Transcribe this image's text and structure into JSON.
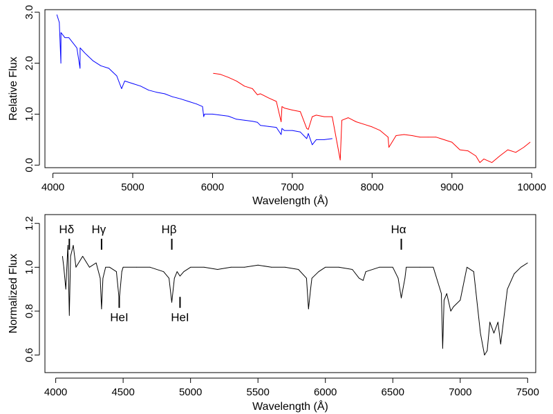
{
  "chart_data": [
    {
      "type": "line",
      "xlabel": "Wavelength (Å)",
      "ylabel": "Relative Flux",
      "xlim": [
        3900,
        10050
      ],
      "ylim": [
        -0.05,
        3.05
      ],
      "xticks": [
        4000,
        5000,
        6000,
        7000,
        8000,
        9000,
        10000
      ],
      "yticks": [
        0.0,
        1.0,
        2.0,
        3.0
      ],
      "ytick_labels": [
        "0.0",
        "1.0",
        "2.0",
        "3.0"
      ],
      "grid": false,
      "series": [
        {
          "color": "#0000ff",
          "x": [
            4050,
            4080,
            4100,
            4101,
            4150,
            4200,
            4300,
            4340,
            4341,
            4400,
            4500,
            4600,
            4700,
            4800,
            4861,
            4900,
            5000,
            5100,
            5200,
            5300,
            5400,
            5500,
            5600,
            5700,
            5800,
            5875,
            5890,
            5900,
            6000,
            6100,
            6200,
            6300,
            6400,
            6500,
            6563,
            6600,
            6700,
            6800,
            6860,
            6870,
            6900,
            7000,
            7100,
            7180,
            7200,
            7250,
            7300,
            7400,
            7500
          ],
          "y": [
            2.95,
            2.8,
            2.0,
            2.6,
            2.5,
            2.5,
            2.3,
            1.9,
            2.3,
            2.2,
            2.05,
            1.95,
            1.9,
            1.75,
            1.5,
            1.65,
            1.6,
            1.55,
            1.47,
            1.43,
            1.4,
            1.34,
            1.3,
            1.25,
            1.2,
            1.15,
            0.95,
            1.0,
            1.0,
            0.98,
            0.96,
            0.9,
            0.88,
            0.86,
            0.84,
            0.78,
            0.76,
            0.74,
            0.6,
            0.72,
            0.68,
            0.68,
            0.65,
            0.52,
            0.62,
            0.4,
            0.5,
            0.5,
            0.52
          ]
        },
        {
          "color": "#ff0000",
          "x": [
            6010,
            6100,
            6200,
            6300,
            6400,
            6500,
            6563,
            6600,
            6700,
            6800,
            6860,
            6870,
            6900,
            7000,
            7100,
            7180,
            7200,
            7250,
            7300,
            7400,
            7500,
            7600,
            7620,
            7700,
            7800,
            7900,
            8000,
            8100,
            8200,
            8210,
            8300,
            8400,
            8500,
            8600,
            8700,
            8800,
            8900,
            9000,
            9100,
            9200,
            9300,
            9350,
            9400,
            9500,
            9600,
            9700,
            9800,
            9900,
            9980
          ],
          "y": [
            1.8,
            1.78,
            1.72,
            1.65,
            1.55,
            1.5,
            1.38,
            1.4,
            1.32,
            1.25,
            0.85,
            1.15,
            1.12,
            1.08,
            1.05,
            0.72,
            0.7,
            0.95,
            0.98,
            0.95,
            0.95,
            0.1,
            0.88,
            0.93,
            0.85,
            0.8,
            0.75,
            0.68,
            0.55,
            0.35,
            0.58,
            0.6,
            0.58,
            0.55,
            0.55,
            0.55,
            0.5,
            0.45,
            0.3,
            0.28,
            0.18,
            0.05,
            0.12,
            0.05,
            0.18,
            0.3,
            0.25,
            0.35,
            0.45
          ]
        }
      ]
    },
    {
      "type": "line",
      "xlabel": "Wavelength (Å)",
      "ylabel": "Normalized Flux",
      "xlim": [
        3920,
        7560
      ],
      "ylim": [
        0.52,
        1.24
      ],
      "xticks": [
        4000,
        4500,
        5000,
        5500,
        6000,
        6500,
        7000,
        7500
      ],
      "yticks": [
        0.6,
        0.8,
        1.0,
        1.2
      ],
      "ytick_labels": [
        "0.6",
        "0.8",
        "1.0",
        "1.2"
      ],
      "grid": false,
      "series": [
        {
          "color": "#000000",
          "x": [
            4050,
            4060,
            4075,
            4090,
            4101,
            4110,
            4130,
            4150,
            4200,
            4250,
            4300,
            4330,
            4340,
            4350,
            4370,
            4400,
            4450,
            4471,
            4490,
            4500,
            4600,
            4700,
            4800,
            4840,
            4861,
            4880,
            4900,
            4922,
            4950,
            5000,
            5100,
            5200,
            5300,
            5400,
            5500,
            5600,
            5700,
            5800,
            5860,
            5875,
            5890,
            5900,
            5950,
            6000,
            6100,
            6200,
            6250,
            6280,
            6300,
            6400,
            6500,
            6540,
            6563,
            6590,
            6600,
            6700,
            6800,
            6860,
            6870,
            6880,
            6900,
            6930,
            6950,
            7000,
            7050,
            7100,
            7150,
            7180,
            7200,
            7220,
            7250,
            7280,
            7300,
            7350,
            7400,
            7450,
            7500
          ],
          "y": [
            1.05,
            1.0,
            0.9,
            1.1,
            0.78,
            1.05,
            1.1,
            1.0,
            1.05,
            1.0,
            1.02,
            0.95,
            0.81,
            0.95,
            1.0,
            1.0,
            0.98,
            0.85,
            0.98,
            1.0,
            1.0,
            1.0,
            0.98,
            0.95,
            0.84,
            0.95,
            0.98,
            0.96,
            0.98,
            1.0,
            1.0,
            0.99,
            1.0,
            1.0,
            1.01,
            1.0,
            1.0,
            0.99,
            0.95,
            0.81,
            0.9,
            0.95,
            0.98,
            1.0,
            1.0,
            0.99,
            0.95,
            0.94,
            0.98,
            1.0,
            1.0,
            0.95,
            0.86,
            0.95,
            1.0,
            1.0,
            1.0,
            0.88,
            0.63,
            0.85,
            0.88,
            0.8,
            0.82,
            0.85,
            1.0,
            0.98,
            0.7,
            0.6,
            0.62,
            0.75,
            0.7,
            0.75,
            0.65,
            0.9,
            0.97,
            1.0,
            1.02
          ]
        }
      ],
      "annotations_above": [
        {
          "text": "Hδ",
          "x": 4101
        },
        {
          "text": "Hγ",
          "x": 4340
        },
        {
          "text": "Hβ",
          "x": 4861
        },
        {
          "text": "Hα",
          "x": 6563
        }
      ],
      "annotations_below": [
        {
          "text": "HeI",
          "x": 4471
        },
        {
          "text": "HeI",
          "x": 4922
        }
      ]
    }
  ]
}
